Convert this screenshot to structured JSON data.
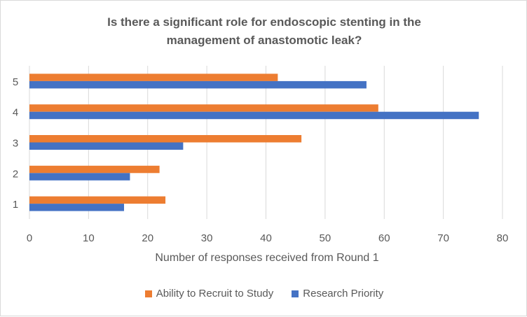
{
  "chart_data": {
    "type": "bar",
    "orientation": "horizontal",
    "title_lines": [
      "Is there a significant role for endoscopic stenting in the",
      "management of anastomotic leak?"
    ],
    "xlabel": "Number of responses received from Round 1",
    "categories": [
      "1",
      "2",
      "3",
      "4",
      "5"
    ],
    "xlim": [
      0,
      80
    ],
    "xticks": [
      0,
      10,
      20,
      30,
      40,
      50,
      60,
      70,
      80
    ],
    "grid": true,
    "legend_position": "bottom",
    "series": [
      {
        "name": "Ability to Recruit to Study",
        "color": "#ed7d31",
        "values": [
          23,
          22,
          46,
          59,
          42
        ]
      },
      {
        "name": "Research Priority",
        "color": "#4472c4",
        "values": [
          16,
          17,
          26,
          76,
          57
        ]
      }
    ]
  }
}
